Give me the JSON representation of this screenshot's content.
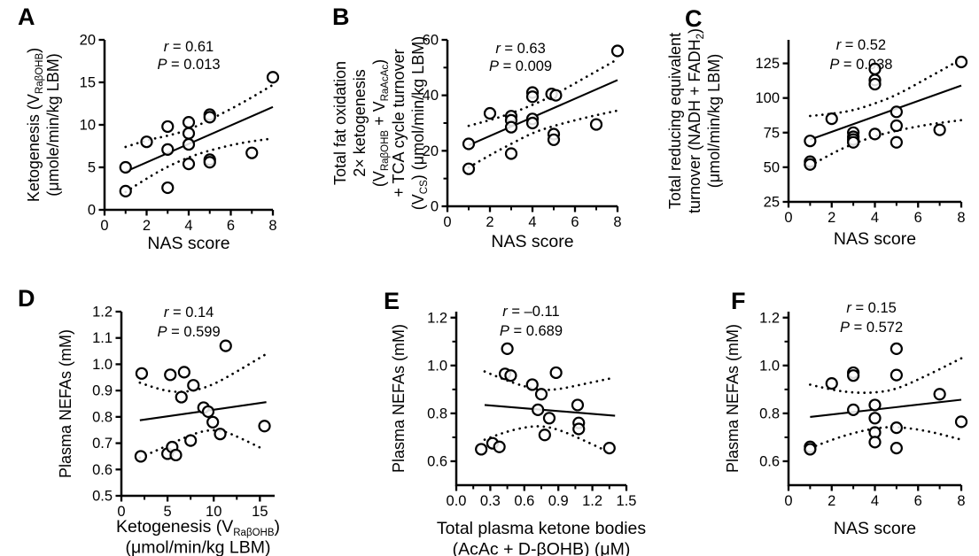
{
  "colors": {
    "ink": "#000000",
    "background": "#ffffff"
  },
  "chart_data": [
    {
      "type": "scatter",
      "panel": "A",
      "stats": {
        "r": "r = 0.61",
        "p": "P = 0.013"
      },
      "x": {
        "label_lines": [
          [
            "NAS score"
          ]
        ],
        "min": 0,
        "max": 8,
        "ticks": [
          0,
          2,
          4,
          6,
          8
        ],
        "tick_labels": [
          "0",
          "2",
          "4",
          "6",
          "8"
        ],
        "minor_ticks": [
          1,
          3,
          5,
          7
        ]
      },
      "y": {
        "label_lines": [
          [
            "Ketogenesis (V",
            {
              "sub": "RaβOHB"
            },
            ")"
          ],
          [
            "(μmole/min/kg LBM)"
          ]
        ],
        "min": 0,
        "max": 20,
        "ticks": [
          0,
          5,
          10,
          15,
          20
        ],
        "tick_labels": [
          "0",
          "5",
          "10",
          "15",
          "20"
        ],
        "minor_ticks": []
      },
      "points": [
        [
          1,
          5.0
        ],
        [
          1,
          2.2
        ],
        [
          2,
          8.0
        ],
        [
          3,
          9.8
        ],
        [
          3,
          7.1
        ],
        [
          3,
          2.6
        ],
        [
          4,
          10.3
        ],
        [
          4,
          9.0
        ],
        [
          4,
          7.7
        ],
        [
          4,
          5.4
        ],
        [
          5,
          11.2
        ],
        [
          5,
          10.9
        ],
        [
          5,
          5.9
        ],
        [
          5,
          5.6
        ],
        [
          7,
          6.7
        ],
        [
          8,
          15.6
        ]
      ],
      "fit_line": {
        "x": [
          1,
          8
        ],
        "y": [
          4.5,
          12.1
        ]
      },
      "ci_upper": [
        [
          1,
          7.4
        ],
        [
          2,
          8.2
        ],
        [
          3,
          8.7
        ],
        [
          4,
          9.4
        ],
        [
          5,
          10.6
        ],
        [
          6.5,
          12.5
        ],
        [
          8,
          14.7
        ]
      ],
      "ci_lower": [
        [
          1,
          2.1
        ],
        [
          2,
          3.7
        ],
        [
          3,
          5.1
        ],
        [
          4,
          6.2
        ],
        [
          5,
          7.0
        ],
        [
          6.5,
          7.9
        ],
        [
          8,
          8.4
        ]
      ]
    },
    {
      "type": "scatter",
      "panel": "B",
      "stats": {
        "r": "r = 0.63",
        "p": "P = 0.009"
      },
      "x": {
        "label_lines": [
          [
            "NAS score"
          ]
        ],
        "min": 0,
        "max": 8,
        "ticks": [
          0,
          2,
          4,
          6,
          8
        ],
        "tick_labels": [
          "0",
          "2",
          "4",
          "6",
          "8"
        ],
        "minor_ticks": [
          1,
          3,
          5,
          7
        ]
      },
      "y": {
        "label_lines": [
          [
            "Total fat oxidation"
          ],
          [
            "2× ketogenesis"
          ],
          [
            "(V",
            {
              "sub": "RaβOHB"
            },
            " + V",
            {
              "sub": "RaAcAc"
            },
            ")"
          ],
          [
            "+ TCA cycle turnover"
          ],
          [
            "(V",
            {
              "sub": "CS"
            },
            ") (μmol/min/kg LBM)"
          ]
        ],
        "min": 0,
        "max": 60,
        "ticks": [
          0,
          20,
          40,
          60
        ],
        "tick_labels": [
          "0",
          "20",
          "40",
          "60"
        ],
        "minor_ticks": [
          10,
          30,
          50
        ]
      },
      "points": [
        [
          1,
          22.5
        ],
        [
          1,
          13.5
        ],
        [
          2,
          33.5
        ],
        [
          3,
          32.5
        ],
        [
          3,
          31
        ],
        [
          3,
          28.5
        ],
        [
          3,
          19
        ],
        [
          4,
          41
        ],
        [
          4,
          39.5
        ],
        [
          4,
          31.5
        ],
        [
          4,
          30
        ],
        [
          4.9,
          40.5
        ],
        [
          5.1,
          40
        ],
        [
          5,
          26
        ],
        [
          5,
          24
        ],
        [
          7,
          29.5
        ],
        [
          8,
          56
        ]
      ],
      "fit_line": {
        "x": [
          1,
          8
        ],
        "y": [
          22,
          45.5
        ]
      },
      "ci_upper": [
        [
          1,
          29
        ],
        [
          2,
          31
        ],
        [
          3,
          33.5
        ],
        [
          4,
          36.5
        ],
        [
          5,
          40
        ],
        [
          6.5,
          46.5
        ],
        [
          8,
          53
        ]
      ],
      "ci_lower": [
        [
          1,
          14
        ],
        [
          2,
          18.5
        ],
        [
          3,
          22.5
        ],
        [
          4,
          26.5
        ],
        [
          5,
          29
        ],
        [
          6.5,
          32
        ],
        [
          8,
          34.5
        ]
      ]
    },
    {
      "type": "scatter",
      "panel": "C",
      "stats": {
        "r": "r = 0.52",
        "p": "P = 0.038"
      },
      "x": {
        "label_lines": [
          [
            "NAS score"
          ]
        ],
        "min": 0,
        "max": 8,
        "ticks": [
          0,
          2,
          4,
          6,
          8
        ],
        "tick_labels": [
          "0",
          "2",
          "4",
          "6",
          "8"
        ],
        "minor_ticks": [
          1,
          3,
          5,
          7
        ]
      },
      "y": {
        "label_lines": [
          [
            "Total reducing equivalent"
          ],
          [
            "turnover (NADH + FADH",
            {
              "sub": "2"
            },
            ")"
          ],
          [
            "(μmol/min/kg LBM)"
          ]
        ],
        "min": 25,
        "max": 142,
        "ticks": [
          25,
          50,
          75,
          100,
          125
        ],
        "tick_labels": [
          "25",
          "50",
          "75",
          "100",
          "125"
        ],
        "minor_ticks": []
      },
      "points": [
        [
          1,
          69
        ],
        [
          1,
          54
        ],
        [
          1,
          52
        ],
        [
          2,
          85
        ],
        [
          3,
          75
        ],
        [
          3,
          72
        ],
        [
          3,
          70
        ],
        [
          3,
          68
        ],
        [
          4,
          121
        ],
        [
          4,
          113
        ],
        [
          4,
          110
        ],
        [
          4,
          74
        ],
        [
          5,
          90
        ],
        [
          5,
          80
        ],
        [
          5,
          68
        ],
        [
          7,
          77
        ],
        [
          8,
          126
        ]
      ],
      "fit_line": {
        "x": [
          1,
          8
        ],
        "y": [
          70,
          109
        ]
      },
      "ci_upper": [
        [
          1,
          87
        ],
        [
          2,
          88.5
        ],
        [
          3,
          91
        ],
        [
          4,
          96
        ],
        [
          5,
          102
        ],
        [
          6.5,
          115
        ],
        [
          8,
          128
        ]
      ],
      "ci_lower": [
        [
          1,
          51
        ],
        [
          2,
          60
        ],
        [
          3,
          67
        ],
        [
          4,
          72.5
        ],
        [
          5,
          76.5
        ],
        [
          6.5,
          81
        ],
        [
          8,
          84
        ]
      ]
    },
    {
      "type": "scatter",
      "panel": "D",
      "stats": {
        "r": "r = 0.14",
        "p": "P = 0.599"
      },
      "x": {
        "label_lines": [
          [
            "Ketogenesis (V",
            {
              "sub": "RaβOHB"
            },
            ")"
          ],
          [
            "(μmol/min/kg LBM)"
          ]
        ],
        "min": 0,
        "max": 16.6,
        "ticks": [
          0,
          5,
          10,
          15
        ],
        "tick_labels": [
          "0",
          "5",
          "10",
          "15"
        ],
        "minor_ticks": [
          2.5,
          7.5,
          12.5
        ]
      },
      "y": {
        "label_lines": [
          [
            "Plasma NEFAs (mM)"
          ]
        ],
        "min": 0.5,
        "max": 1.2,
        "ticks": [
          0.5,
          0.6,
          0.7,
          0.8,
          0.9,
          1.0,
          1.1,
          1.2
        ],
        "tick_labels": [
          "0.5",
          "0.6",
          "0.7",
          "0.8",
          "0.9",
          "1.0",
          "1.1",
          "1.2"
        ],
        "minor_ticks": []
      },
      "points": [
        [
          2.2,
          0.965
        ],
        [
          2.1,
          0.65
        ],
        [
          5.3,
          0.96
        ],
        [
          6.8,
          0.97
        ],
        [
          5.0,
          0.66
        ],
        [
          5.5,
          0.685
        ],
        [
          5.9,
          0.655
        ],
        [
          6.5,
          0.875
        ],
        [
          7.8,
          0.92
        ],
        [
          7.5,
          0.71
        ],
        [
          8.9,
          0.835
        ],
        [
          9.4,
          0.82
        ],
        [
          9.9,
          0.78
        ],
        [
          10.7,
          0.735
        ],
        [
          11.3,
          1.07
        ],
        [
          15.5,
          0.765
        ]
      ],
      "fit_line": {
        "x": [
          2,
          15.7
        ],
        "y": [
          0.787,
          0.856
        ]
      },
      "ci_upper": [
        [
          2,
          0.93
        ],
        [
          4,
          0.905
        ],
        [
          6,
          0.893
        ],
        [
          8,
          0.9
        ],
        [
          10,
          0.923
        ],
        [
          12.5,
          0.972
        ],
        [
          15.5,
          1.035
        ]
      ],
      "ci_lower": [
        [
          2,
          0.645
        ],
        [
          4,
          0.675
        ],
        [
          6,
          0.708
        ],
        [
          8,
          0.738
        ],
        [
          9.5,
          0.75
        ],
        [
          11,
          0.748
        ],
        [
          13,
          0.718
        ],
        [
          15.5,
          0.675
        ]
      ]
    },
    {
      "type": "scatter",
      "panel": "E",
      "stats": {
        "r": "r = –0.11",
        "p": "P = 0.689"
      },
      "x": {
        "label_lines": [
          [
            "Total plasma ketone bodies"
          ],
          [
            "(AcAc + D-βOHB) (μM)"
          ]
        ],
        "min": 0,
        "max": 1.5,
        "ticks": [
          0,
          0.3,
          0.6,
          0.9,
          1.2,
          1.5
        ],
        "tick_labels": [
          "0.0",
          "0.3",
          "0.6",
          "0.9",
          "1.2",
          "1.5"
        ],
        "minor_ticks": [
          0.15,
          0.45,
          0.75,
          1.05,
          1.35
        ]
      },
      "y": {
        "label_lines": [
          [
            "Plasma NEFAs (mM)"
          ]
        ],
        "min": 0.5,
        "max": 1.225,
        "ticks": [
          0.6,
          0.8,
          1.0,
          1.2
        ],
        "tick_labels": [
          "0.6",
          "0.8",
          "1.0",
          "1.2"
        ],
        "minor_ticks": [
          0.7,
          0.9,
          1.1
        ]
      },
      "points": [
        [
          0.22,
          0.65
        ],
        [
          0.32,
          0.675
        ],
        [
          0.38,
          0.66
        ],
        [
          0.45,
          1.07
        ],
        [
          0.43,
          0.965
        ],
        [
          0.48,
          0.958
        ],
        [
          0.67,
          0.92
        ],
        [
          0.75,
          0.88
        ],
        [
          0.72,
          0.815
        ],
        [
          0.88,
          0.97
        ],
        [
          0.82,
          0.78
        ],
        [
          0.78,
          0.71
        ],
        [
          1.07,
          0.835
        ],
        [
          1.08,
          0.76
        ],
        [
          1.08,
          0.735
        ],
        [
          1.35,
          0.655
        ]
      ],
      "fit_line": {
        "x": [
          0.25,
          1.4
        ],
        "y": [
          0.835,
          0.79
        ]
      },
      "ci_upper": [
        [
          0.25,
          0.975
        ],
        [
          0.4,
          0.945
        ],
        [
          0.6,
          0.912
        ],
        [
          0.75,
          0.897
        ],
        [
          0.9,
          0.9
        ],
        [
          1.1,
          0.92
        ],
        [
          1.35,
          0.945
        ]
      ],
      "ci_lower": [
        [
          0.25,
          0.69
        ],
        [
          0.4,
          0.718
        ],
        [
          0.6,
          0.742
        ],
        [
          0.75,
          0.748
        ],
        [
          0.9,
          0.733
        ],
        [
          1.1,
          0.693
        ],
        [
          1.35,
          0.637
        ]
      ]
    },
    {
      "type": "scatter",
      "panel": "F",
      "stats": {
        "r": "r = 0.15",
        "p": "P = 0.572"
      },
      "x": {
        "label_lines": [
          [
            "NAS score"
          ]
        ],
        "min": 0,
        "max": 8,
        "ticks": [
          0,
          2,
          4,
          6,
          8
        ],
        "tick_labels": [
          "0",
          "2",
          "4",
          "6",
          "8"
        ],
        "minor_ticks": [
          1,
          3,
          5,
          7
        ]
      },
      "y": {
        "label_lines": [
          [
            "Plasma NEFAs (mM)"
          ]
        ],
        "min": 0.5,
        "max": 1.225,
        "ticks": [
          0.6,
          0.8,
          1.0,
          1.2
        ],
        "tick_labels": [
          "0.6",
          "0.8",
          "1.0",
          "1.2"
        ],
        "minor_ticks": [
          0.7,
          0.9,
          1.1
        ]
      },
      "points": [
        [
          1,
          0.66
        ],
        [
          1,
          0.65
        ],
        [
          2,
          0.925
        ],
        [
          3,
          0.97
        ],
        [
          3,
          0.958
        ],
        [
          3,
          0.815
        ],
        [
          4,
          0.835
        ],
        [
          4,
          0.78
        ],
        [
          4,
          0.72
        ],
        [
          4,
          0.68
        ],
        [
          5,
          1.07
        ],
        [
          5,
          0.96
        ],
        [
          5,
          0.74
        ],
        [
          5,
          0.655
        ],
        [
          7,
          0.88
        ],
        [
          8,
          0.765
        ]
      ],
      "fit_line": {
        "x": [
          1,
          8
        ],
        "y": [
          0.785,
          0.857
        ]
      },
      "ci_upper": [
        [
          1,
          0.92
        ],
        [
          2,
          0.898
        ],
        [
          3,
          0.886
        ],
        [
          4,
          0.886
        ],
        [
          5,
          0.9
        ],
        [
          6.5,
          0.962
        ],
        [
          8,
          1.03
        ]
      ],
      "ci_lower": [
        [
          1,
          0.655
        ],
        [
          2,
          0.69
        ],
        [
          3,
          0.718
        ],
        [
          4,
          0.738
        ],
        [
          5,
          0.745
        ],
        [
          6.5,
          0.726
        ],
        [
          8,
          0.69
        ]
      ]
    }
  ]
}
